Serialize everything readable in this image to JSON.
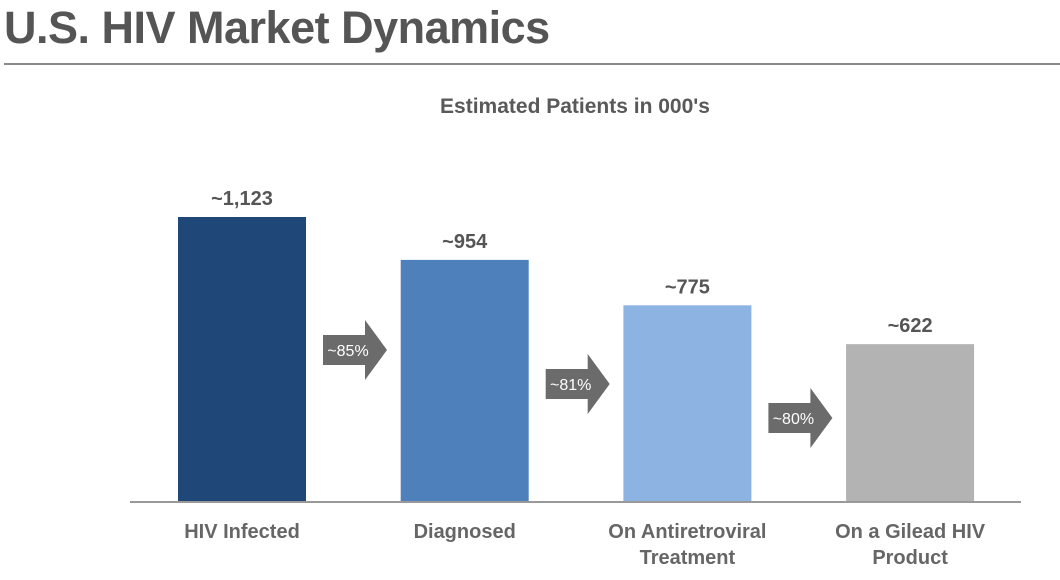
{
  "page": {
    "title": "U.S. HIV Market Dynamics"
  },
  "chart_data": {
    "type": "bar",
    "title": "Estimated Patients in 000's",
    "categories": [
      [
        "HIV Infected"
      ],
      [
        "Diagnosed"
      ],
      [
        "On Antiretroviral",
        "Treatment"
      ],
      [
        "On a Gilead HIV",
        "Product"
      ]
    ],
    "values": [
      1123,
      954,
      775,
      622
    ],
    "value_labels": [
      "~1,123",
      "~954",
      "~775",
      "~622"
    ],
    "colors": [
      "#1f4778",
      "#4e80bc",
      "#8db3e2",
      "#b3b3b3"
    ],
    "conversion_arrows": [
      {
        "label": "~85%",
        "from": 0,
        "to": 1
      },
      {
        "label": "~81%",
        "from": 1,
        "to": 2
      },
      {
        "label": "~80%",
        "from": 2,
        "to": 3
      }
    ],
    "arrow_color": "#6b6b6b",
    "ylim": [
      0,
      1123
    ],
    "xlabel": "",
    "ylabel": "",
    "grid": false
  }
}
